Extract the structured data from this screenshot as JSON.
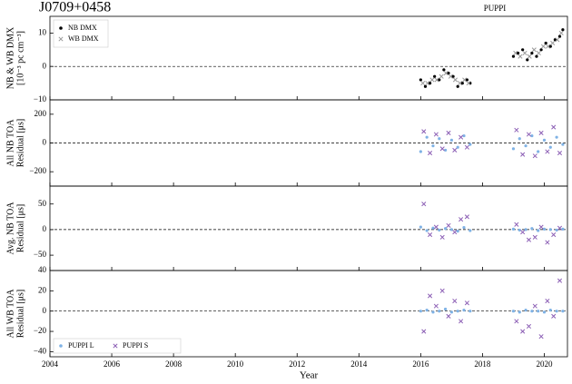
{
  "chart_data": [
    {
      "type": "scatter",
      "title": "J0709+0458",
      "annotation": "PUPPI",
      "y_label": [
        "NB & WB DMX",
        "[10⁻³ pc cm⁻³]"
      ],
      "xlim": [
        2004,
        2020.75
      ],
      "ylim": [
        -10,
        15
      ],
      "yticks": [
        {
          "value": -10,
          "label": "−10"
        },
        0,
        10
      ],
      "legend": "upper left",
      "series": [
        {
          "name": "NB DMX",
          "color": "#000000",
          "marker": "dot",
          "x": [
            2016.0,
            2016.15,
            2016.3,
            2016.45,
            2016.6,
            2016.75,
            2016.9,
            2017.05,
            2017.2,
            2017.35,
            2017.5,
            2017.6,
            2019.0,
            2019.15,
            2019.3,
            2019.45,
            2019.6,
            2019.75,
            2019.9,
            2020.05,
            2020.2,
            2020.35,
            2020.5,
            2020.6
          ],
          "values": [
            -4,
            -6,
            -5,
            -3,
            -4,
            -1,
            -2,
            -3,
            -6,
            -5,
            -4,
            -5,
            3,
            4,
            5,
            2,
            4,
            3,
            5,
            7,
            6,
            8,
            9,
            11
          ]
        },
        {
          "name": "WB DMX",
          "color": "#999999",
          "marker": "x",
          "x": [
            2016.07,
            2016.22,
            2016.37,
            2016.52,
            2016.67,
            2016.82,
            2016.97,
            2017.12,
            2017.27,
            2017.42,
            2017.55,
            2019.07,
            2019.22,
            2019.37,
            2019.52,
            2019.67,
            2019.82,
            2019.97,
            2020.12,
            2020.27,
            2020.42,
            2020.55
          ],
          "values": [
            -5,
            -5,
            -4,
            -4,
            -3,
            -2,
            -3,
            -4,
            -5,
            -4,
            -5,
            4,
            3,
            4,
            3,
            5,
            4,
            6,
            6,
            7,
            8,
            10
          ]
        }
      ]
    },
    {
      "type": "scatter",
      "y_label": [
        "All NB TOA",
        "Residual [μs]"
      ],
      "xlim": [
        2004,
        2020.75
      ],
      "ylim": [
        -300,
        300
      ],
      "yticks": [
        {
          "value": -200,
          "label": "−200"
        },
        0,
        200
      ],
      "series": [
        {
          "name": "PUPPI L",
          "color": "#7fb2e5",
          "marker": "dot",
          "x": [
            2016.0,
            2016.2,
            2016.4,
            2016.6,
            2016.8,
            2017.0,
            2017.2,
            2017.4,
            2017.6,
            2019.0,
            2019.2,
            2019.4,
            2019.6,
            2019.8,
            2020.0,
            2020.2,
            2020.4,
            2020.6
          ],
          "values": [
            -60,
            40,
            -20,
            30,
            -50,
            20,
            -30,
            50,
            -10,
            -40,
            30,
            -20,
            50,
            -60,
            20,
            -30,
            40,
            -10
          ]
        },
        {
          "name": "PUPPI S",
          "color": "#8c5fb5",
          "marker": "x",
          "x": [
            2016.1,
            2016.3,
            2016.5,
            2016.7,
            2016.9,
            2017.1,
            2017.3,
            2017.5,
            2019.1,
            2019.3,
            2019.5,
            2019.7,
            2019.9,
            2020.1,
            2020.3,
            2020.5
          ],
          "values": [
            80,
            -70,
            60,
            -40,
            70,
            -50,
            40,
            -30,
            90,
            -80,
            60,
            -90,
            70,
            -60,
            110,
            -70
          ]
        }
      ]
    },
    {
      "type": "scatter",
      "y_label": [
        "Avg. NB TOA",
        "Residual [μs]"
      ],
      "xlim": [
        2004,
        2020.75
      ],
      "ylim": [
        -80,
        85
      ],
      "yticks": [
        {
          "value": -50,
          "label": "−50"
        },
        0,
        50
      ],
      "series": [
        {
          "name": "PUPPI L",
          "color": "#7fb2e5",
          "marker": "dot",
          "x": [
            2016.0,
            2016.2,
            2016.4,
            2016.6,
            2016.8,
            2017.0,
            2017.2,
            2017.4,
            2017.6,
            2019.0,
            2019.2,
            2019.4,
            2019.6,
            2019.8,
            2020.0,
            2020.2,
            2020.4,
            2020.6
          ],
          "values": [
            5,
            -2,
            3,
            -1,
            2,
            0,
            -3,
            4,
            -2,
            1,
            -1,
            0,
            2,
            -2,
            1,
            0,
            -1,
            1
          ]
        },
        {
          "name": "PUPPI S",
          "color": "#8c5fb5",
          "marker": "x",
          "x": [
            2016.1,
            2016.3,
            2016.5,
            2016.7,
            2016.9,
            2017.1,
            2017.3,
            2017.5,
            2019.1,
            2019.3,
            2019.5,
            2019.7,
            2019.9,
            2020.1,
            2020.3,
            2020.5
          ],
          "values": [
            50,
            -10,
            5,
            -15,
            8,
            -5,
            20,
            25,
            10,
            -5,
            -20,
            -15,
            5,
            -25,
            -10,
            3
          ]
        }
      ]
    },
    {
      "type": "scatter",
      "y_label": [
        "All WB TOA",
        "Residual [μs]"
      ],
      "x_label": "Year",
      "xlim": [
        2004,
        2020.75
      ],
      "ylim": [
        -45,
        40
      ],
      "xticks": [
        2004,
        2006,
        2008,
        2010,
        2012,
        2014,
        2016,
        2018,
        2020
      ],
      "yticks": [
        {
          "value": -40,
          "label": "−40"
        },
        {
          "value": -20,
          "label": "−20"
        },
        0,
        20,
        40
      ],
      "legend": "lower left",
      "series": [
        {
          "name": "PUPPI L",
          "color": "#7fb2e5",
          "marker": "dot",
          "x": [
            2016.0,
            2016.2,
            2016.4,
            2016.6,
            2016.8,
            2017.0,
            2017.2,
            2017.4,
            2017.6,
            2019.0,
            2019.2,
            2019.4,
            2019.6,
            2019.8,
            2020.0,
            2020.2,
            2020.4,
            2020.6
          ],
          "values": [
            0,
            1,
            -1,
            0,
            2,
            -1,
            0,
            1,
            0,
            0,
            -1,
            1,
            0,
            0,
            -1,
            1,
            0,
            0
          ]
        },
        {
          "name": "PUPPI S",
          "color": "#8c5fb5",
          "marker": "x",
          "x": [
            2016.1,
            2016.3,
            2016.5,
            2016.7,
            2016.9,
            2017.1,
            2017.3,
            2017.5,
            2019.1,
            2019.3,
            2019.5,
            2019.7,
            2019.9,
            2020.1,
            2020.3,
            2020.5
          ],
          "values": [
            -20,
            15,
            5,
            20,
            -5,
            10,
            -10,
            8,
            -10,
            -20,
            -15,
            5,
            -25,
            10,
            -5,
            30
          ]
        }
      ]
    }
  ]
}
